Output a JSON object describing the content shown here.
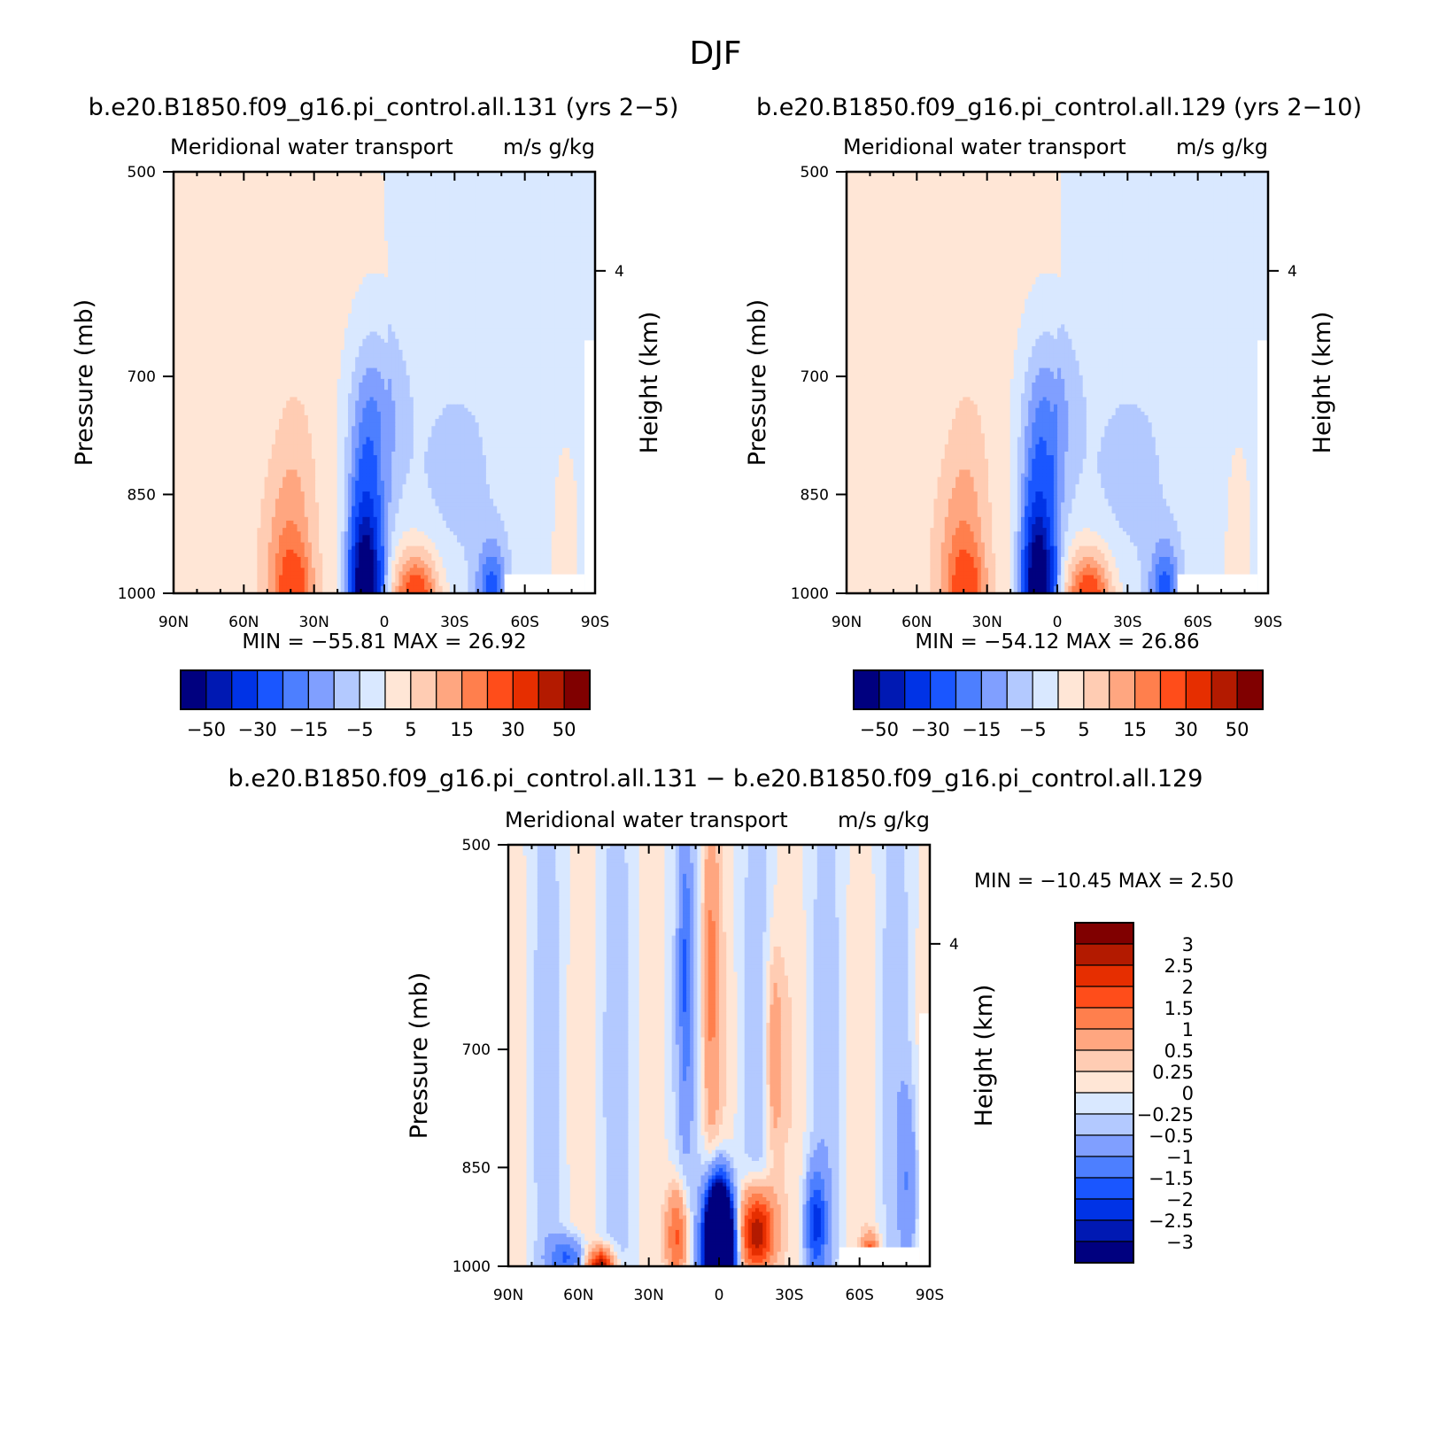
{
  "figure": {
    "title": "DJF"
  },
  "chart_data": [
    {
      "id": "p1",
      "type": "heatmap",
      "title": "b.e20.B1850.f09_g16.pi_control.all.131 (yrs 2−5)",
      "left_string": "Meridional water transport",
      "right_string": "m/s g/kg",
      "ylabel": "Pressure (mb)",
      "right_label": "Height (km)",
      "x_ticks": [
        "90N",
        "60N",
        "30N",
        "0",
        "30S",
        "60S",
        "90S"
      ],
      "y_ticks": [
        "500",
        "700",
        "850",
        "1000"
      ],
      "right_ticks": [
        "4"
      ],
      "stats": "MIN = −55.81   MAX =   26.92",
      "min": -55.81,
      "max": 26.92,
      "colorbar_labels": [
        "−50",
        "−30",
        "−15",
        "−5",
        "5",
        "15",
        "30",
        "50"
      ]
    },
    {
      "id": "p2",
      "type": "heatmap",
      "title": "b.e20.B1850.f09_g16.pi_control.all.129 (yrs 2−10)",
      "left_string": "Meridional water transport",
      "right_string": "m/s g/kg",
      "ylabel": "Pressure (mb)",
      "right_label": "Height (km)",
      "x_ticks": [
        "90N",
        "60N",
        "30N",
        "0",
        "30S",
        "60S",
        "90S"
      ],
      "y_ticks": [
        "500",
        "700",
        "850",
        "1000"
      ],
      "right_ticks": [
        "4"
      ],
      "stats": "MIN = −54.12   MAX =   26.86",
      "min": -54.12,
      "max": 26.86,
      "colorbar_labels": [
        "−50",
        "−30",
        "−15",
        "−5",
        "5",
        "15",
        "30",
        "50"
      ]
    },
    {
      "id": "p3",
      "type": "heatmap",
      "title": "b.e20.B1850.f09_g16.pi_control.all.131 − b.e20.B1850.f09_g16.pi_control.all.129",
      "left_string": "Meridional water transport",
      "right_string": "m/s g/kg",
      "ylabel": "Pressure (mb)",
      "right_label": "Height (km)",
      "x_ticks": [
        "90N",
        "60N",
        "30N",
        "0",
        "30S",
        "60S",
        "90S"
      ],
      "y_ticks": [
        "500",
        "700",
        "850",
        "1000"
      ],
      "right_ticks": [
        "4"
      ],
      "stats": "MIN = −10.45   MAX =     2.50",
      "min": -10.45,
      "max": 2.5,
      "colorbar_labels": [
        "3",
        "2.5",
        "2",
        "1.5",
        "1",
        "0.5",
        "0.25",
        "0",
        "−0.25",
        "−0.5",
        "−1",
        "−1.5",
        "−2",
        "−2.5",
        "−3"
      ]
    }
  ],
  "colormap": [
    "#00007f",
    "#0019b3",
    "#0033e6",
    "#1a56ff",
    "#4d7fff",
    "#809fff",
    "#b3c9ff",
    "#d9e8ff",
    "#ffe6d6",
    "#ffccb3",
    "#ffa680",
    "#ff7f4d",
    "#ff4d1a",
    "#e62e00",
    "#b31a00",
    "#800000"
  ]
}
